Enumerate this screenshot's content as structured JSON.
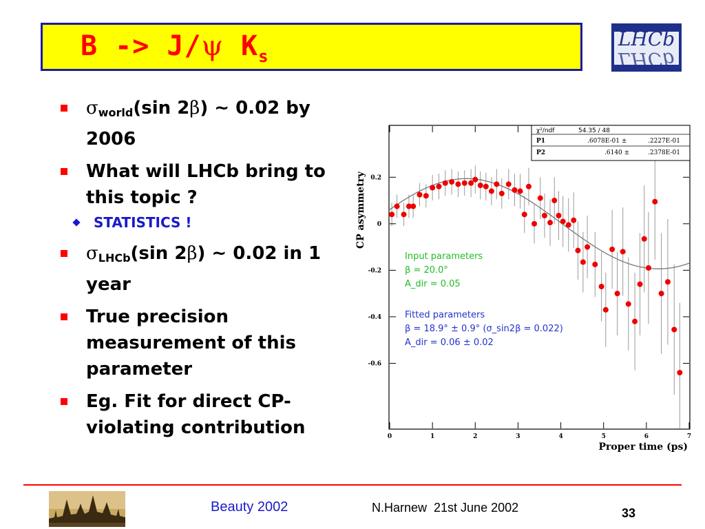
{
  "slide": {
    "title_main": "B -> J/",
    "title_psi": "ψ",
    "title_k": " K",
    "title_sub": "s",
    "logo_text": "LHCb"
  },
  "bullets": {
    "b1": {
      "sigma": "σ",
      "sub": "world",
      "pre": "(sin 2",
      "beta": "β",
      "post": ") ~ 0.02 by 2006"
    },
    "b2": "What will LHCb bring to this topic ?",
    "b2_sub": "STATISTICS !",
    "b3": {
      "sigma": "σ",
      "sub": "LHCb",
      "pre": "(sin 2",
      "beta": "β",
      "post": ") ~ 0.02 in 1 year"
    },
    "b4": "True precision measurement of this parameter",
    "b5": "Eg. Fit for direct CP-violating contribution"
  },
  "chart_data": {
    "type": "scatter",
    "xlabel": "Proper time (ps)",
    "ylabel": "CP asymmetry",
    "xlim": [
      0,
      7
    ],
    "ylim": [
      -0.88,
      0.42
    ],
    "xticks": [
      "0",
      "1",
      "2",
      "3",
      "4",
      "5",
      "6",
      "7"
    ],
    "xtick_values": [
      0,
      1,
      2,
      3,
      4,
      5,
      6,
      7
    ],
    "yticks": [
      "0.2",
      "0",
      "-0.2",
      "-0.4",
      "-0.6"
    ],
    "ytick_values": [
      0.2,
      0,
      -0.2,
      -0.4,
      -0.6
    ],
    "fit_curve": {
      "P1": 0.06078,
      "P2": 0.614,
      "tmax": 7.0
    },
    "points": [
      {
        "x": 0.05,
        "y": 0.04,
        "err": 0.05
      },
      {
        "x": 0.17,
        "y": 0.075,
        "err": 0.05
      },
      {
        "x": 0.33,
        "y": 0.04,
        "err": 0.05
      },
      {
        "x": 0.45,
        "y": 0.075,
        "err": 0.05
      },
      {
        "x": 0.55,
        "y": 0.075,
        "err": 0.05
      },
      {
        "x": 0.7,
        "y": 0.125,
        "err": 0.05
      },
      {
        "x": 0.85,
        "y": 0.12,
        "err": 0.05
      },
      {
        "x": 1.0,
        "y": 0.155,
        "err": 0.055
      },
      {
        "x": 1.15,
        "y": 0.16,
        "err": 0.055
      },
      {
        "x": 1.3,
        "y": 0.175,
        "err": 0.055
      },
      {
        "x": 1.45,
        "y": 0.18,
        "err": 0.055
      },
      {
        "x": 1.6,
        "y": 0.17,
        "err": 0.055
      },
      {
        "x": 1.75,
        "y": 0.175,
        "err": 0.055
      },
      {
        "x": 1.9,
        "y": 0.175,
        "err": 0.06
      },
      {
        "x": 2.0,
        "y": 0.19,
        "err": 0.06
      },
      {
        "x": 2.12,
        "y": 0.165,
        "err": 0.06
      },
      {
        "x": 2.25,
        "y": 0.16,
        "err": 0.06
      },
      {
        "x": 2.38,
        "y": 0.14,
        "err": 0.06
      },
      {
        "x": 2.5,
        "y": 0.17,
        "err": 0.065
      },
      {
        "x": 2.62,
        "y": 0.13,
        "err": 0.065
      },
      {
        "x": 2.78,
        "y": 0.17,
        "err": 0.065
      },
      {
        "x": 2.92,
        "y": 0.145,
        "err": 0.07
      },
      {
        "x": 3.05,
        "y": 0.14,
        "err": 0.075
      },
      {
        "x": 3.15,
        "y": 0.04,
        "err": 0.08
      },
      {
        "x": 3.25,
        "y": 0.16,
        "err": 0.08
      },
      {
        "x": 3.38,
        "y": 0.0,
        "err": 0.085
      },
      {
        "x": 3.52,
        "y": 0.11,
        "err": 0.09
      },
      {
        "x": 3.62,
        "y": 0.035,
        "err": 0.095
      },
      {
        "x": 3.75,
        "y": 0.005,
        "err": 0.1
      },
      {
        "x": 3.85,
        "y": 0.1,
        "err": 0.1
      },
      {
        "x": 3.95,
        "y": 0.035,
        "err": 0.105
      },
      {
        "x": 4.05,
        "y": 0.01,
        "err": 0.11
      },
      {
        "x": 4.18,
        "y": -0.005,
        "err": 0.115
      },
      {
        "x": 4.3,
        "y": 0.015,
        "err": 0.12
      },
      {
        "x": 4.4,
        "y": -0.115,
        "err": 0.125
      },
      {
        "x": 4.52,
        "y": -0.165,
        "err": 0.13
      },
      {
        "x": 4.62,
        "y": -0.1,
        "err": 0.135
      },
      {
        "x": 4.8,
        "y": -0.175,
        "err": 0.14
      },
      {
        "x": 4.95,
        "y": -0.27,
        "err": 0.15
      },
      {
        "x": 5.05,
        "y": -0.37,
        "err": 0.16
      },
      {
        "x": 5.2,
        "y": -0.11,
        "err": 0.17
      },
      {
        "x": 5.32,
        "y": -0.3,
        "err": 0.18
      },
      {
        "x": 5.45,
        "y": -0.12,
        "err": 0.19
      },
      {
        "x": 5.58,
        "y": -0.345,
        "err": 0.2
      },
      {
        "x": 5.73,
        "y": -0.42,
        "err": 0.21
      },
      {
        "x": 5.85,
        "y": -0.26,
        "err": 0.22
      },
      {
        "x": 5.95,
        "y": -0.065,
        "err": 0.23
      },
      {
        "x": 6.05,
        "y": -0.19,
        "err": 0.24
      },
      {
        "x": 6.2,
        "y": 0.095,
        "err": 0.25
      },
      {
        "x": 6.35,
        "y": -0.3,
        "err": 0.26
      },
      {
        "x": 6.5,
        "y": -0.25,
        "err": 0.27
      },
      {
        "x": 6.65,
        "y": -0.455,
        "err": 0.28
      },
      {
        "x": 6.78,
        "y": -0.64,
        "err": 0.3
      }
    ],
    "stats_box": {
      "chi_label": "χ²/ndf",
      "chi_value": "54.35   /   48",
      "rows": [
        {
          "name": "P1",
          "value": ".6078E-01 ±",
          "error": ".2227E-01"
        },
        {
          "name": "P2",
          "value": ".6140 ±",
          "error": ".2378E-01"
        }
      ]
    },
    "annotations": {
      "input_title": "Input parameters",
      "input_beta": "β = 20.0°",
      "input_adir": "A_dir = 0.05",
      "fitted_title": "Fitted parameters",
      "fitted_beta": "β = 18.9° ± 0.9° (σ_sin2β = 0.022)",
      "fitted_adir": "A_dir = 0.06 ± 0.02"
    }
  },
  "footer": {
    "conference": "Beauty 2002",
    "author": "N.Harnew  21st June 2002",
    "page": "33"
  },
  "colors": {
    "title_text": "#ff0000",
    "title_bg": "#ffff00",
    "title_border": "#1a1aa6",
    "bullet": "#ff0000",
    "sub_bullet": "#1a1acc",
    "points": "#ee0000",
    "input_text": "#22bb22",
    "fitted_text": "#2233cc"
  }
}
